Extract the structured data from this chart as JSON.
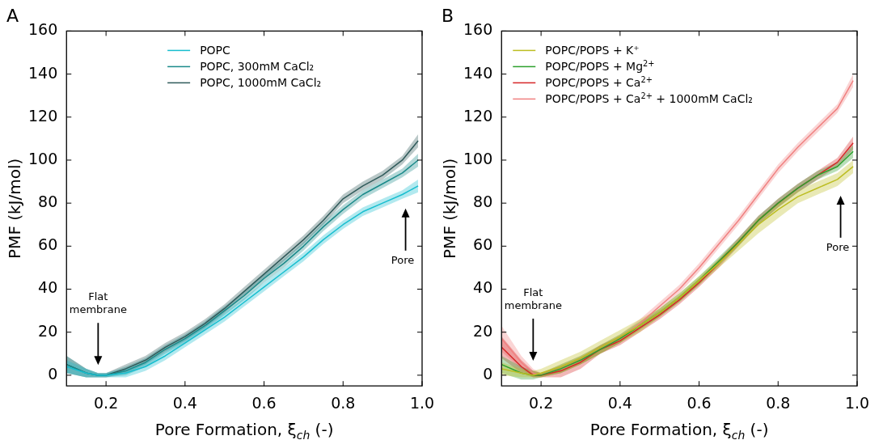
{
  "chart_data": [
    {
      "type": "line",
      "title": "A",
      "xlabel": "Pore Formation, ξ$_{ch}$ (-)",
      "ylabel": "PMF (kJ/mol)",
      "x": [
        0.1,
        0.15,
        0.18,
        0.2,
        0.25,
        0.3,
        0.35,
        0.4,
        0.45,
        0.5,
        0.55,
        0.6,
        0.65,
        0.7,
        0.75,
        0.8,
        0.85,
        0.9,
        0.95,
        0.99
      ],
      "xlim": [
        0.1,
        1.0
      ],
      "xticks": [
        0.2,
        0.4,
        0.6,
        0.8,
        {
          "value": 1.0,
          "label": "1.0"
        }
      ],
      "ylim": [
        -5,
        160
      ],
      "yticks": [
        0,
        20,
        40,
        60,
        80,
        100,
        120,
        140,
        160
      ],
      "legend": "top",
      "marker": "none",
      "line_style": "solid",
      "series": [
        {
          "name": "POPC",
          "color": "#17becf",
          "values": [
            4,
            1,
            0,
            0,
            1,
            4,
            9,
            15,
            21,
            27,
            34,
            41,
            48,
            55,
            63,
            70,
            76,
            80,
            84,
            88
          ],
          "lower": [
            1,
            -1,
            -1,
            -1,
            -1,
            2,
            7,
            13,
            19,
            25,
            32,
            39,
            46,
            53,
            61,
            68,
            74,
            78,
            82,
            85
          ],
          "upper": [
            7,
            3,
            1,
            1,
            3,
            6,
            11,
            17,
            23,
            29,
            36,
            43,
            50,
            57,
            65,
            72,
            78,
            82,
            86,
            91
          ]
        },
        {
          "name": "POPC, 300mM CaCl₂",
          "color": "#1a8a8a",
          "values": [
            5,
            1,
            0,
            0,
            2,
            6,
            12,
            17,
            23,
            30,
            37,
            45,
            52,
            60,
            69,
            77,
            84,
            89,
            94,
            100
          ],
          "lower": [
            1,
            -1,
            -1,
            -1,
            0,
            4,
            10,
            15,
            21,
            28,
            35,
            43,
            50,
            58,
            67,
            75,
            82,
            87,
            92,
            97
          ],
          "upper": [
            9,
            3,
            1,
            1,
            4,
            8,
            14,
            19,
            25,
            32,
            39,
            47,
            54,
            62,
            71,
            79,
            86,
            91,
            96,
            103
          ]
        },
        {
          "name": "POPC, 1000mM CaCl₂",
          "color": "#2f5a5a",
          "values": [
            5,
            1,
            0,
            0,
            3,
            7,
            13,
            18,
            24,
            31,
            39,
            47,
            55,
            63,
            72,
            82,
            88,
            93,
            100,
            109
          ],
          "lower": [
            1,
            -1,
            -1,
            -1,
            1,
            5,
            11,
            16,
            22,
            29,
            37,
            45,
            53,
            61,
            70,
            80,
            86,
            91,
            98,
            106
          ],
          "upper": [
            9,
            3,
            1,
            1,
            5,
            9,
            15,
            20,
            26,
            33,
            41,
            49,
            57,
            65,
            74,
            84,
            90,
            95,
            102,
            112
          ]
        }
      ],
      "annotations": [
        "Flat membrane",
        "Pore"
      ]
    },
    {
      "type": "line",
      "title": "B",
      "xlabel": "Pore Formation, ξ$_{ch}$ (-)",
      "ylabel": "PMF (kJ/mol)",
      "x": [
        0.1,
        0.15,
        0.18,
        0.2,
        0.25,
        0.3,
        0.35,
        0.4,
        0.45,
        0.5,
        0.55,
        0.6,
        0.65,
        0.7,
        0.75,
        0.8,
        0.85,
        0.9,
        0.95,
        0.99
      ],
      "xlim": [
        0.1,
        1.0
      ],
      "xticks": [
        0.2,
        0.4,
        0.6,
        0.8,
        {
          "value": 1.0,
          "label": "1.0"
        }
      ],
      "ylim": [
        -5,
        160
      ],
      "yticks": [
        0,
        20,
        40,
        60,
        80,
        100,
        120,
        140,
        160
      ],
      "legend": "top left",
      "marker": "none",
      "line_style": "solid",
      "series": [
        {
          "name": "POPC/POPS + K⁺",
          "color": "#bcbd22",
          "values": [
            3,
            1,
            0,
            1,
            4,
            8,
            13,
            18,
            23,
            29,
            36,
            44,
            52,
            61,
            70,
            77,
            83,
            87,
            91,
            97
          ],
          "lower": [
            0,
            -1,
            -1,
            -1,
            1,
            5,
            10,
            15,
            20,
            27,
            34,
            42,
            50,
            58,
            66,
            73,
            80,
            84,
            88,
            94
          ],
          "upper": [
            6,
            3,
            2,
            3,
            7,
            11,
            16,
            21,
            26,
            31,
            38,
            46,
            54,
            63,
            73,
            80,
            86,
            90,
            94,
            100
          ]
        },
        {
          "name": "POPC/POPS + Mg$^{2+}$",
          "color": "#2ca02c",
          "values": [
            5,
            1,
            0,
            0,
            3,
            7,
            12,
            17,
            23,
            29,
            36,
            44,
            53,
            62,
            72,
            80,
            87,
            93,
            97,
            104
          ],
          "lower": [
            1,
            -2,
            -2,
            -1,
            1,
            5,
            10,
            15,
            21,
            27,
            34,
            42,
            51,
            60,
            70,
            78,
            85,
            91,
            95,
            101
          ],
          "upper": [
            9,
            4,
            2,
            1,
            5,
            9,
            14,
            19,
            25,
            31,
            38,
            46,
            55,
            64,
            74,
            82,
            89,
            95,
            99,
            107
          ]
        },
        {
          "name": "POPC/POPS + Ca$^{2+}$",
          "color": "#d62728",
          "values": [
            13,
            4,
            0,
            0,
            2,
            6,
            12,
            16,
            22,
            28,
            35,
            43,
            52,
            62,
            72,
            80,
            87,
            93,
            99,
            108
          ],
          "lower": [
            8,
            1,
            -1,
            -1,
            -1,
            3,
            10,
            14,
            20,
            26,
            33,
            41,
            50,
            60,
            70,
            78,
            85,
            91,
            97,
            105
          ],
          "upper": [
            18,
            7,
            2,
            1,
            4,
            8,
            14,
            18,
            24,
            30,
            37,
            45,
            54,
            64,
            74,
            82,
            89,
            95,
            101,
            111
          ]
        },
        {
          "name": "POPC/POPS + Ca$^{2+}$ + 1000mM CaCl₂",
          "color": "#f08080",
          "values": [
            17,
            6,
            1,
            0,
            3,
            7,
            12,
            17,
            24,
            32,
            40,
            50,
            61,
            72,
            84,
            96,
            106,
            115,
            124,
            137
          ],
          "lower": [
            11,
            3,
            -1,
            -1,
            1,
            5,
            10,
            15,
            22,
            30,
            38,
            48,
            59,
            70,
            82,
            94,
            104,
            113,
            122,
            134
          ],
          "upper": [
            23,
            9,
            3,
            1,
            5,
            9,
            14,
            19,
            26,
            34,
            42,
            52,
            63,
            74,
            86,
            98,
            108,
            117,
            126,
            140
          ]
        }
      ],
      "annotations": [
        "Flat membrane",
        "Pore"
      ]
    }
  ]
}
